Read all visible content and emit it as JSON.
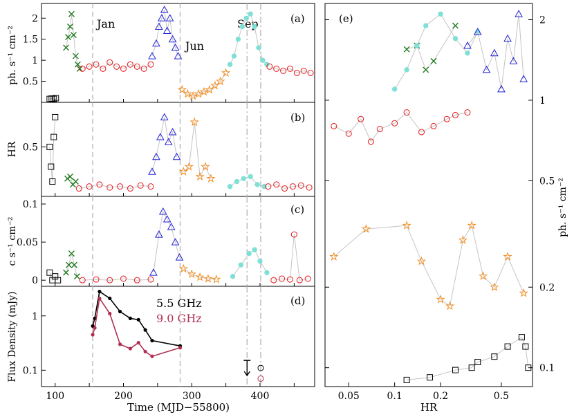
{
  "chart_data": [
    {
      "id": "a",
      "type": "scatter",
      "panel_label": "(a)",
      "ylabel": "ph. s⁻¹ cm⁻²",
      "xlim": [
        80,
        480
      ],
      "ylim": [
        0,
        2.35
      ],
      "yticks": [
        "0.5",
        "1",
        "1.5",
        "2"
      ],
      "annotations": [
        "Jan",
        "Jun",
        "Sep"
      ],
      "series": [
        {
          "color": "#000000",
          "marker": "square",
          "x": [
            92,
            95,
            98,
            101
          ],
          "y": [
            0.08,
            0.09,
            0.08,
            0.1
          ]
        },
        {
          "color": "#1f7a1f",
          "marker": "x",
          "x": [
            116,
            119,
            122,
            124,
            127,
            130,
            133,
            136
          ],
          "y": [
            1.3,
            1.55,
            1.8,
            2.1,
            1.6,
            1.1,
            0.9,
            0.8
          ]
        },
        {
          "color": "#e8161b",
          "marker": "circle",
          "x": [
            140,
            150,
            160,
            170,
            180,
            190,
            200,
            210,
            220,
            230,
            240
          ],
          "y": [
            0.8,
            0.85,
            0.9,
            0.8,
            0.95,
            0.85,
            0.8,
            0.9,
            0.85,
            0.8,
            0.9
          ]
        },
        {
          "color": "#1f1fd6",
          "marker": "triangle",
          "x": [
            242,
            248,
            252,
            256,
            260,
            264,
            268,
            272,
            276,
            280
          ],
          "y": [
            1.1,
            1.4,
            1.8,
            2.0,
            2.2,
            1.7,
            2.0,
            1.5,
            1.3,
            1.1
          ]
        },
        {
          "color": "#f28c1f",
          "marker": "star",
          "x": [
            286,
            294,
            302,
            310,
            318,
            326,
            334,
            342,
            350
          ],
          "y": [
            0.3,
            0.2,
            0.15,
            0.2,
            0.25,
            0.3,
            0.4,
            0.5,
            0.7
          ]
        },
        {
          "color": "#7ee0d6",
          "marker": "dot",
          "x": [
            356,
            362,
            368,
            374,
            380,
            386,
            392,
            398,
            404,
            410
          ],
          "y": [
            0.9,
            1.1,
            1.5,
            1.8,
            2.0,
            2.1,
            1.8,
            1.3,
            1.0,
            0.9
          ]
        },
        {
          "color": "#e8161b",
          "marker": "circle",
          "x": [
            414,
            424,
            434,
            444,
            454,
            464,
            474
          ],
          "y": [
            0.85,
            0.8,
            0.75,
            0.8,
            0.7,
            0.75,
            0.7
          ]
        }
      ]
    },
    {
      "id": "b",
      "type": "scatter",
      "panel_label": "(b)",
      "ylabel": "HR",
      "xlim": [
        80,
        480
      ],
      "ylim": [
        0,
        0.95
      ],
      "yticks": [
        "0.5"
      ],
      "series": [
        {
          "color": "#000000",
          "marker": "square",
          "x": [
            92,
            94,
            96,
            98,
            100
          ],
          "y": [
            0.5,
            0.3,
            0.15,
            0.6,
            0.8
          ]
        },
        {
          "color": "#1f7a1f",
          "marker": "x",
          "x": [
            118,
            122,
            126,
            130
          ],
          "y": [
            0.18,
            0.2,
            0.12,
            0.15
          ]
        },
        {
          "color": "#e8161b",
          "marker": "circle",
          "x": [
            135,
            150,
            165,
            180,
            195,
            210,
            225,
            240
          ],
          "y": [
            0.08,
            0.1,
            0.12,
            0.09,
            0.1,
            0.08,
            0.11,
            0.1
          ]
        },
        {
          "color": "#1f1fd6",
          "marker": "triangle",
          "x": [
            242,
            248,
            254,
            260,
            266,
            272,
            278
          ],
          "y": [
            0.25,
            0.4,
            0.6,
            0.8,
            0.55,
            0.65,
            0.4
          ]
        },
        {
          "color": "#f28c1f",
          "marker": "star",
          "x": [
            288,
            296,
            304,
            312,
            320,
            328
          ],
          "y": [
            0.25,
            0.3,
            0.75,
            0.2,
            0.3,
            0.18
          ]
        },
        {
          "color": "#7ee0d6",
          "marker": "dot",
          "x": [
            356,
            366,
            376,
            386,
            396,
            406
          ],
          "y": [
            0.1,
            0.15,
            0.18,
            0.2,
            0.12,
            0.1
          ]
        },
        {
          "color": "#e8161b",
          "marker": "circle",
          "x": [
            412,
            424,
            436,
            448,
            460,
            472
          ],
          "y": [
            0.1,
            0.12,
            0.08,
            0.1,
            0.11,
            0.09
          ]
        }
      ]
    },
    {
      "id": "c",
      "type": "scatter",
      "panel_label": "(c)",
      "ylabel": "c s⁻¹ cm⁻²",
      "xlim": [
        80,
        480
      ],
      "ylim": [
        -0.008,
        0.11
      ],
      "yticks": [
        "0",
        "0.05",
        "0.1"
      ],
      "series": [
        {
          "color": "#000000",
          "marker": "square",
          "x": [
            92,
            96,
            100,
            104
          ],
          "y": [
            0.01,
            0.0,
            0.005,
            0.0
          ]
        },
        {
          "color": "#1f7a1f",
          "marker": "x",
          "x": [
            116,
            120,
            124,
            128,
            132
          ],
          "y": [
            0.01,
            0.02,
            0.035,
            0.02,
            0.005
          ]
        },
        {
          "color": "#e8161b",
          "marker": "circle",
          "x": [
            140,
            160,
            180,
            200,
            220,
            240
          ],
          "y": [
            0.0,
            0.001,
            0.0,
            0.002,
            0.0,
            0.001
          ]
        },
        {
          "color": "#1f1fd6",
          "marker": "triangle",
          "x": [
            244,
            252,
            258,
            264,
            270,
            276,
            282
          ],
          "y": [
            0.01,
            0.06,
            0.09,
            0.08,
            0.07,
            0.05,
            0.03
          ]
        },
        {
          "color": "#f28c1f",
          "marker": "star",
          "x": [
            288,
            300,
            312,
            324,
            336
          ],
          "y": [
            0.015,
            0.008,
            0.004,
            0.002,
            0.001
          ]
        },
        {
          "color": "#7ee0d6",
          "marker": "dot",
          "x": [
            360,
            372,
            384,
            392,
            400,
            410
          ],
          "y": [
            0.005,
            0.02,
            0.035,
            0.04,
            0.025,
            0.01
          ]
        },
        {
          "color": "#e8161b",
          "marker": "circle",
          "x": [
            420,
            432,
            444,
            450,
            458,
            470
          ],
          "y": [
            0.0,
            0.002,
            0.001,
            0.06,
            0.0,
            0.002
          ]
        }
      ]
    },
    {
      "id": "d",
      "type": "line",
      "panel_label": "(d)",
      "ylabel": "Flux Density (mJy)",
      "xlabel": "Time (MJD−55800)",
      "xlim": [
        80,
        480
      ],
      "ylim": [
        0.05,
        3.5
      ],
      "yscale": "log",
      "xticks": [
        "100",
        "200",
        "300",
        "400"
      ],
      "yticks": [
        "0.1",
        "1"
      ],
      "legend": [
        "5.5 GHz",
        "9.0 GHz"
      ],
      "series": [
        {
          "name": "5.5 GHz",
          "color": "#000000",
          "x": [
            155,
            158,
            165,
            180,
            195,
            210,
            222,
            232,
            242,
            283
          ],
          "y": [
            0.65,
            0.9,
            2.8,
            2.1,
            1.2,
            0.9,
            0.85,
            0.55,
            0.35,
            0.28
          ]
        },
        {
          "name": "9.0 GHz",
          "color": "#b03050",
          "x": [
            155,
            158,
            165,
            180,
            195,
            210,
            222,
            232,
            242,
            283
          ],
          "y": [
            0.45,
            0.6,
            2.1,
            1.1,
            0.3,
            0.25,
            0.32,
            0.22,
            0.18,
            0.26
          ]
        }
      ],
      "upper_limit": {
        "x": 381,
        "y": 0.12
      },
      "late_points": {
        "x": 401,
        "y_55": 0.11,
        "y_90": 0.07
      }
    },
    {
      "id": "e",
      "type": "scatter",
      "panel_label": "(e)",
      "xlabel": "HR",
      "ylabel": "ph. s⁻¹ cm⁻²",
      "xscale": "log",
      "yscale": "log",
      "xlim": [
        0.035,
        0.8
      ],
      "ylim": [
        0.085,
        2.3
      ],
      "xticks": [
        "0.05",
        "0.1",
        "0.2",
        "0.5"
      ],
      "yticks": [
        "0.1",
        "0.2",
        "0.5",
        "1",
        "2"
      ],
      "series": [
        {
          "color": "#000000",
          "marker": "square",
          "x": [
            0.12,
            0.17,
            0.25,
            0.32,
            0.35,
            0.45,
            0.55,
            0.68,
            0.72,
            0.75
          ],
          "y": [
            0.09,
            0.092,
            0.098,
            0.1,
            0.105,
            0.11,
            0.12,
            0.13,
            0.12,
            0.1
          ]
        },
        {
          "color": "#e8161b",
          "marker": "circle",
          "x": [
            0.04,
            0.05,
            0.06,
            0.07,
            0.08,
            0.1,
            0.12,
            0.15,
            0.18,
            0.22,
            0.25,
            0.3
          ],
          "y": [
            0.8,
            0.75,
            0.85,
            0.7,
            0.78,
            0.82,
            0.9,
            0.76,
            0.8,
            0.85,
            0.88,
            0.9
          ]
        },
        {
          "color": "#1f7a1f",
          "marker": "x",
          "x": [
            0.12,
            0.14,
            0.16,
            0.18,
            0.25
          ],
          "y": [
            1.55,
            1.6,
            1.3,
            1.4,
            1.9
          ]
        },
        {
          "color": "#7ee0d6",
          "marker": "dot",
          "x": [
            0.1,
            0.12,
            0.14,
            0.16,
            0.2,
            0.25,
            0.3,
            0.35
          ],
          "y": [
            1.1,
            1.3,
            1.6,
            1.9,
            2.1,
            1.7,
            1.5,
            1.8
          ]
        },
        {
          "color": "#1f1fd6",
          "marker": "triangle",
          "x": [
            0.3,
            0.35,
            0.4,
            0.45,
            0.5,
            0.55,
            0.6,
            0.65,
            0.7
          ],
          "y": [
            1.6,
            1.8,
            1.3,
            1.5,
            1.1,
            1.7,
            1.4,
            2.1,
            1.2
          ]
        },
        {
          "color": "#f28c1f",
          "marker": "star",
          "x": [
            0.04,
            0.065,
            0.12,
            0.15,
            0.2,
            0.23,
            0.28,
            0.32,
            0.38,
            0.45,
            0.55,
            0.7
          ],
          "y": [
            0.26,
            0.33,
            0.34,
            0.25,
            0.18,
            0.17,
            0.3,
            0.34,
            0.22,
            0.2,
            0.26,
            0.19
          ]
        }
      ]
    }
  ]
}
